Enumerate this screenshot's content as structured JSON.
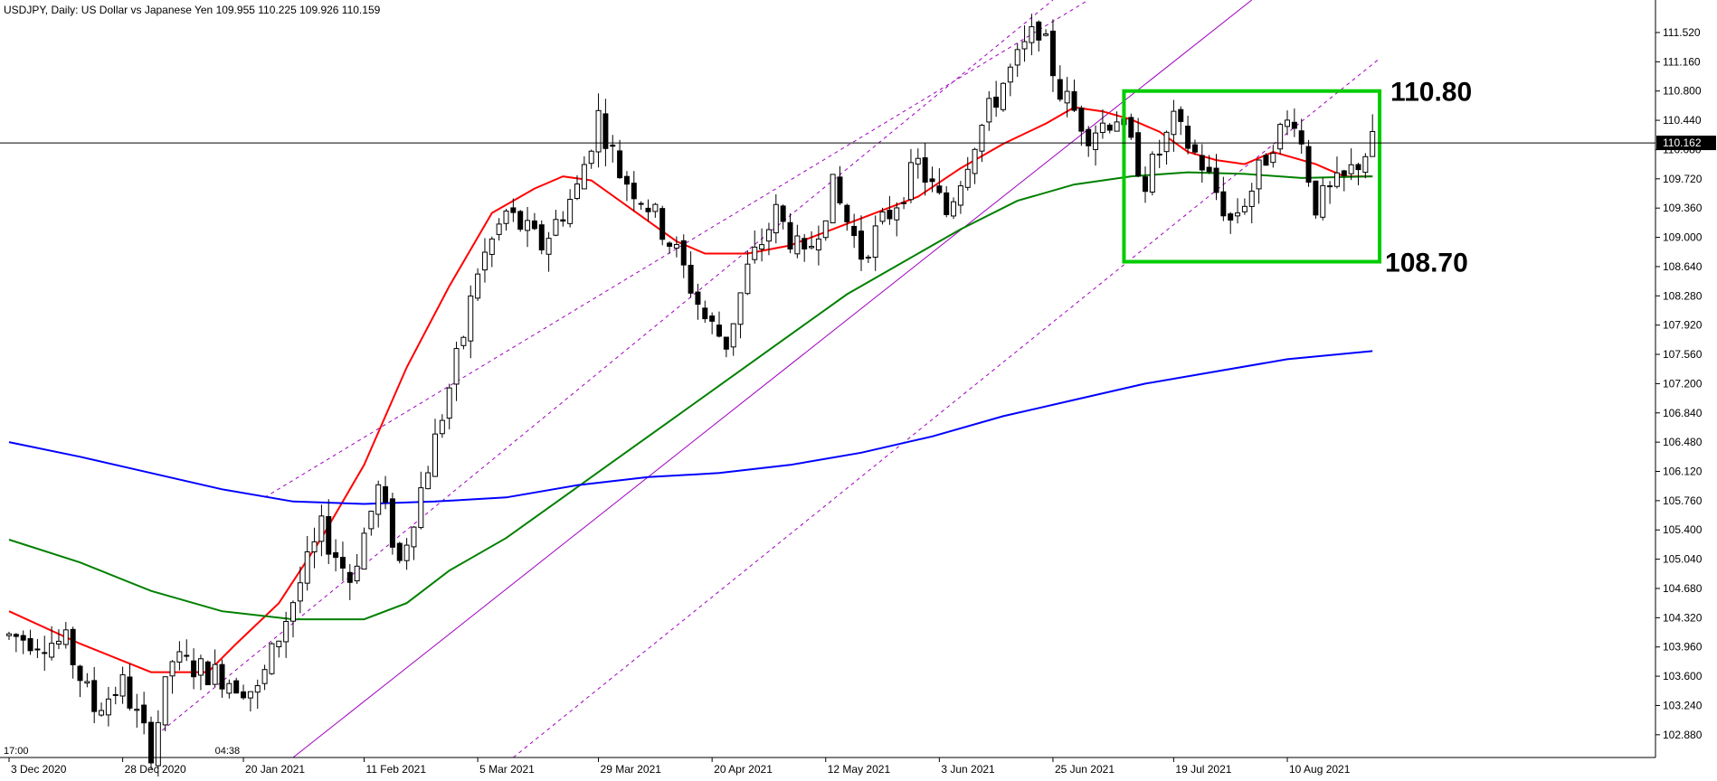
{
  "header": {
    "symbol": "USDJPY, Daily:",
    "description": "US Dollar vs Japanese Yen",
    "ohlc": "109.955 110.225 109.926 110.159"
  },
  "chart_data": {
    "type": "candlestick",
    "ylim": [
      102.6,
      111.92
    ],
    "y_ticks": [
      "111.520",
      "111.160",
      "110.800",
      "110.440",
      "110.080",
      "109.720",
      "109.360",
      "109.000",
      "108.640",
      "108.280",
      "107.920",
      "107.560",
      "107.200",
      "106.840",
      "106.480",
      "106.120",
      "105.760",
      "105.400",
      "105.040",
      "104.680",
      "104.320",
      "103.960",
      "103.600",
      "103.240",
      "102.880"
    ],
    "x_ticks": [
      {
        "index": 0,
        "label": "3 Dec 2020"
      },
      {
        "index": 16,
        "label": "28 Dec 2020"
      },
      {
        "index": 33,
        "label": "20 Jan 2021"
      },
      {
        "index": 50,
        "label": "11 Feb 2021"
      },
      {
        "index": 66,
        "label": "5 Mar 2021"
      },
      {
        "index": 83,
        "label": "29 Mar 2021"
      },
      {
        "index": 99,
        "label": "20 Apr 2021"
      },
      {
        "index": 115,
        "label": "12 May 2021"
      },
      {
        "index": 131,
        "label": "3 Jun 2021"
      },
      {
        "index": 147,
        "label": "25 Jun 2021"
      },
      {
        "index": 164,
        "label": "19 Jul 2021"
      },
      {
        "index": 180,
        "label": "10 Aug 2021"
      }
    ],
    "current_price": "110.162",
    "current_price_value": 110.162,
    "candle_count": 193,
    "price_keys": [
      [
        0,
        104.1
      ],
      [
        8,
        104.0
      ],
      [
        12,
        103.2
      ],
      [
        16,
        103.5
      ],
      [
        19,
        102.9
      ],
      [
        20,
        102.7
      ],
      [
        23,
        103.8
      ],
      [
        30,
        103.6
      ],
      [
        35,
        103.4
      ],
      [
        38,
        104.1
      ],
      [
        44,
        105.4
      ],
      [
        48,
        104.8
      ],
      [
        52,
        105.9
      ],
      [
        55,
        105.0
      ],
      [
        60,
        106.5
      ],
      [
        64,
        107.8
      ],
      [
        66,
        108.6
      ],
      [
        70,
        109.3
      ],
      [
        75,
        108.9
      ],
      [
        80,
        109.6
      ],
      [
        83,
        110.5
      ],
      [
        86,
        109.8
      ],
      [
        90,
        109.4
      ],
      [
        94,
        108.8
      ],
      [
        98,
        108.0
      ],
      [
        101,
        107.7
      ],
      [
        104,
        108.6
      ],
      [
        108,
        109.3
      ],
      [
        112,
        108.7
      ],
      [
        116,
        109.6
      ],
      [
        120,
        108.8
      ],
      [
        124,
        109.3
      ],
      [
        128,
        109.9
      ],
      [
        132,
        109.3
      ],
      [
        136,
        110.2
      ],
      [
        140,
        110.9
      ],
      [
        145,
        111.6
      ],
      [
        148,
        110.8
      ],
      [
        152,
        110.3
      ],
      [
        156,
        110.5
      ],
      [
        160,
        109.7
      ],
      [
        164,
        110.4
      ],
      [
        168,
        109.9
      ],
      [
        172,
        109.2
      ],
      [
        175,
        109.6
      ],
      [
        178,
        110.2
      ],
      [
        181,
        110.5
      ],
      [
        184,
        109.4
      ],
      [
        188,
        109.7
      ],
      [
        192,
        110.16
      ]
    ],
    "series": [
      {
        "color": "#ff0000",
        "values": [
          [
            0,
            104.4
          ],
          [
            10,
            104.0
          ],
          [
            20,
            103.65
          ],
          [
            28,
            103.65
          ],
          [
            32,
            104.0
          ],
          [
            38,
            104.5
          ],
          [
            44,
            105.3
          ],
          [
            50,
            106.2
          ],
          [
            56,
            107.4
          ],
          [
            62,
            108.4
          ],
          [
            68,
            109.3
          ],
          [
            74,
            109.6
          ],
          [
            78,
            109.75
          ],
          [
            82,
            109.7
          ],
          [
            86,
            109.45
          ],
          [
            90,
            109.2
          ],
          [
            94,
            108.95
          ],
          [
            98,
            108.8
          ],
          [
            104,
            108.8
          ],
          [
            110,
            108.9
          ],
          [
            116,
            109.1
          ],
          [
            122,
            109.3
          ],
          [
            128,
            109.5
          ],
          [
            134,
            109.85
          ],
          [
            140,
            110.15
          ],
          [
            146,
            110.4
          ],
          [
            150,
            110.6
          ],
          [
            154,
            110.55
          ],
          [
            158,
            110.45
          ],
          [
            162,
            110.3
          ],
          [
            166,
            110.05
          ],
          [
            170,
            109.95
          ],
          [
            174,
            109.9
          ],
          [
            178,
            110.05
          ],
          [
            184,
            109.9
          ],
          [
            188,
            109.75
          ],
          [
            192,
            109.75
          ]
        ]
      },
      {
        "color": "#008000",
        "values": [
          [
            0,
            105.28
          ],
          [
            10,
            105.0
          ],
          [
            20,
            104.65
          ],
          [
            30,
            104.4
          ],
          [
            40,
            104.3
          ],
          [
            50,
            104.3
          ],
          [
            56,
            104.5
          ],
          [
            62,
            104.9
          ],
          [
            70,
            105.3
          ],
          [
            78,
            105.8
          ],
          [
            86,
            106.3
          ],
          [
            94,
            106.8
          ],
          [
            102,
            107.3
          ],
          [
            110,
            107.8
          ],
          [
            118,
            108.3
          ],
          [
            126,
            108.7
          ],
          [
            134,
            109.1
          ],
          [
            142,
            109.45
          ],
          [
            150,
            109.65
          ],
          [
            158,
            109.75
          ],
          [
            166,
            109.8
          ],
          [
            174,
            109.78
          ],
          [
            182,
            109.73
          ],
          [
            192,
            109.75
          ]
        ]
      },
      {
        "color": "#0000ff",
        "values": [
          [
            0,
            106.48
          ],
          [
            10,
            106.3
          ],
          [
            20,
            106.1
          ],
          [
            30,
            105.9
          ],
          [
            40,
            105.75
          ],
          [
            50,
            105.72
          ],
          [
            60,
            105.75
          ],
          [
            70,
            105.8
          ],
          [
            80,
            105.95
          ],
          [
            90,
            106.05
          ],
          [
            100,
            106.1
          ],
          [
            110,
            106.2
          ],
          [
            120,
            106.35
          ],
          [
            130,
            106.55
          ],
          [
            140,
            106.8
          ],
          [
            150,
            107.0
          ],
          [
            160,
            107.2
          ],
          [
            170,
            107.35
          ],
          [
            180,
            107.5
          ],
          [
            192,
            107.6
          ]
        ]
      }
    ],
    "channel_lines": [
      {
        "color": "#a000c0",
        "dashed": true,
        "points": [
          [
            20,
            102.82
          ],
          [
            147,
            111.92
          ]
        ]
      },
      {
        "color": "#a000c0",
        "dashed": true,
        "points": [
          [
            36,
            105.8
          ],
          [
            152,
            111.92
          ]
        ]
      },
      {
        "color": "#a000c0",
        "dashed": false,
        "points": [
          [
            40,
            102.6
          ],
          [
            175,
            111.92
          ]
        ]
      },
      {
        "color": "#a000c0",
        "dashed": true,
        "points": [
          [
            71,
            102.6
          ],
          [
            193,
            111.2
          ]
        ]
      }
    ],
    "zone": {
      "color": "#00cc00",
      "top": 110.8,
      "bottom": 108.7,
      "start_index": 157,
      "end_index": 193
    },
    "annotations": {
      "upper": "110.80",
      "lower": "108.70"
    },
    "time_labels": [
      "17:00",
      "04:38"
    ]
  }
}
